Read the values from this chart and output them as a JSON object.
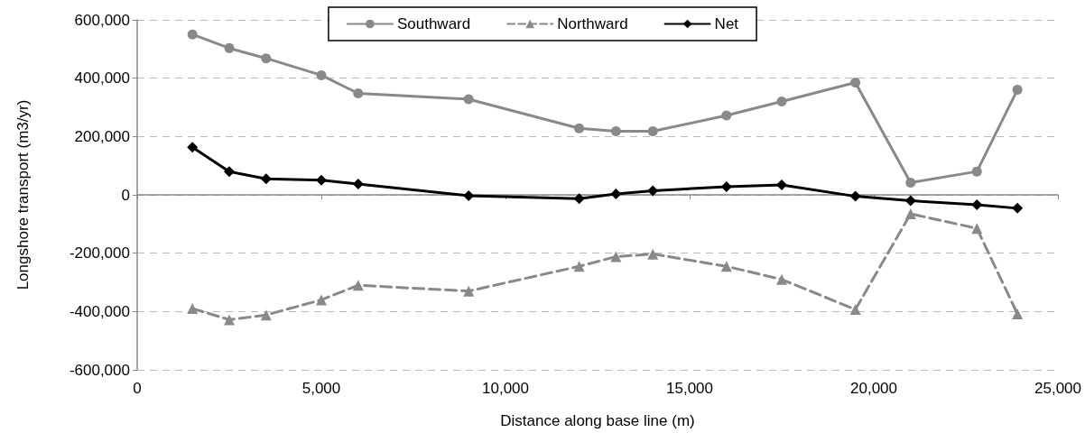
{
  "chart_data": {
    "type": "line",
    "xlabel": "Distance along base line (m)",
    "ylabel": "Longshore transport (m3/yr)",
    "x": [
      1500,
      2500,
      3500,
      5000,
      6000,
      9000,
      12000,
      13000,
      14000,
      16000,
      17500,
      19500,
      21000,
      22800,
      23900
    ],
    "series": [
      {
        "name": "Southward",
        "color": "#898989",
        "marker": "circle",
        "line_style": "solid",
        "values": [
          550000,
          503000,
          468000,
          410000,
          348000,
          328000,
          228000,
          218000,
          218000,
          272000,
          320000,
          385000,
          42000,
          80000,
          360000
        ]
      },
      {
        "name": "Northward",
        "color": "#898989",
        "marker": "triangle",
        "line_style": "dashed",
        "values": [
          -390000,
          -428000,
          -412000,
          -360000,
          -310000,
          -330000,
          -245000,
          -212000,
          -203000,
          -245000,
          -290000,
          -393000,
          -65000,
          -115000,
          -408000
        ]
      },
      {
        "name": "Net",
        "color": "#000000",
        "marker": "diamond",
        "line_style": "solid",
        "values": [
          163000,
          80000,
          55000,
          50000,
          37000,
          -3000,
          -13000,
          3000,
          14000,
          28000,
          34000,
          -5000,
          -20000,
          -34000,
          -46000
        ]
      }
    ],
    "xlim": [
      0,
      25000
    ],
    "xticks": [
      0,
      {
        "value": 5000,
        "label": "5,000"
      },
      {
        "value": 10000,
        "label": "10,000"
      },
      {
        "value": 15000,
        "label": "15,000"
      },
      {
        "value": 20000,
        "label": "20,000"
      },
      {
        "value": 25000,
        "label": "25,000"
      }
    ],
    "ylim": [
      -600000,
      600000
    ],
    "yticks": [
      {
        "value": -600000,
        "label": "-600,000"
      },
      {
        "value": -400000,
        "label": "-400,000"
      },
      {
        "value": -200000,
        "label": "-200,000"
      },
      0,
      {
        "value": 200000,
        "label": "200,000"
      },
      {
        "value": 400000,
        "label": "400,000"
      },
      {
        "value": 600000,
        "label": "600,000"
      }
    ],
    "grid": "y",
    "legend": "top"
  }
}
